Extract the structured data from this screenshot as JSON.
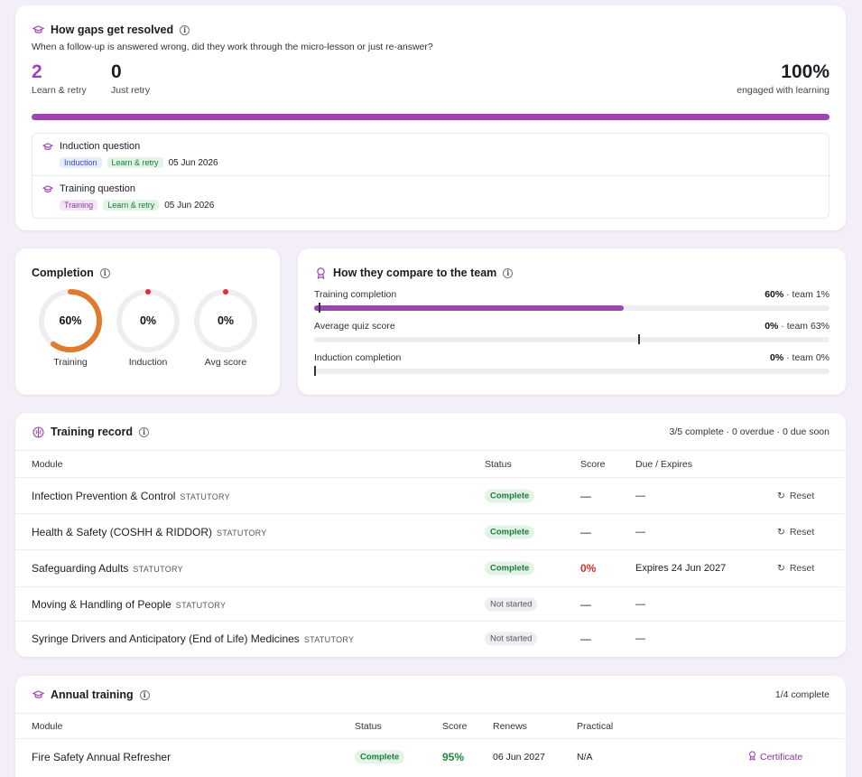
{
  "gaps": {
    "title": "How gaps get resolved",
    "subtitle": "When a follow-up is answered wrong, did they work through the micro-lesson or just re-answer?",
    "learn_retry_count": "2",
    "learn_retry_label": "Learn & retry",
    "just_retry_count": "0",
    "just_retry_label": "Just retry",
    "engaged_pct": "100%",
    "engaged_label": "engaged with learning",
    "engaged_fraction": 1.0,
    "items": [
      {
        "title": "Induction question",
        "category": "Induction",
        "outcome": "Learn & retry",
        "date": "05 Jun 2026"
      },
      {
        "title": "Training question",
        "category": "Training",
        "outcome": "Learn & retry",
        "date": "05 Jun 2026"
      }
    ]
  },
  "completion": {
    "title": "Completion",
    "rings": [
      {
        "value": "60%",
        "label": "Training",
        "fraction": 0.6,
        "color": "#e07a2e"
      },
      {
        "value": "0%",
        "label": "Induction",
        "fraction": 0,
        "color": "#e02d2d"
      },
      {
        "value": "0%",
        "label": "Avg score",
        "fraction": 0,
        "color": "#e02d2d"
      }
    ]
  },
  "compare": {
    "title": "How they compare to the team",
    "rows": [
      {
        "label": "Training completion",
        "value": "60%",
        "team": "· team 1%",
        "fraction": 0.6,
        "team_fraction": 0.01
      },
      {
        "label": "Average quiz score",
        "value": "0%",
        "team": "· team 63%",
        "fraction": 0,
        "team_fraction": 0.63
      },
      {
        "label": "Induction completion",
        "value": "0%",
        "team": "· team 0%",
        "fraction": 0,
        "team_fraction": 0
      }
    ]
  },
  "record": {
    "title": "Training record",
    "summary": "3/5 complete · 0 overdue · 0 due soon",
    "columns": {
      "module": "Module",
      "status": "Status",
      "score": "Score",
      "due": "Due / Expires"
    },
    "rows": [
      {
        "module": "Infection Prevention & Control",
        "tag": "STATUTORY",
        "status": "Complete",
        "score": "—",
        "due": "—",
        "action": "Reset"
      },
      {
        "module": "Health & Safety (COSHH & RIDDOR)",
        "tag": "STATUTORY",
        "status": "Complete",
        "score": "—",
        "due": "—",
        "action": "Reset"
      },
      {
        "module": "Safeguarding Adults",
        "tag": "STATUTORY",
        "status": "Complete",
        "score": "0%",
        "due": "Expires 24 Jun 2027",
        "action": "Reset"
      },
      {
        "module": "Moving & Handling of People",
        "tag": "STATUTORY",
        "status": "Not started",
        "score": "—",
        "due": "—",
        "action": ""
      },
      {
        "module": "Syringe Drivers and Anticipatory (End of Life) Medicines",
        "tag": "STATUTORY",
        "status": "Not started",
        "score": "—",
        "due": "—",
        "action": ""
      }
    ]
  },
  "annual": {
    "title": "Annual training",
    "summary": "1/4 complete",
    "columns": {
      "module": "Module",
      "status": "Status",
      "score": "Score",
      "renews": "Renews",
      "practical": "Practical"
    },
    "rows": [
      {
        "module": "Fire Safety Annual Refresher",
        "status": "Complete",
        "score": "95%",
        "renews": "06 Jun 2027",
        "practical": "N/A",
        "action": "Certificate"
      }
    ]
  }
}
